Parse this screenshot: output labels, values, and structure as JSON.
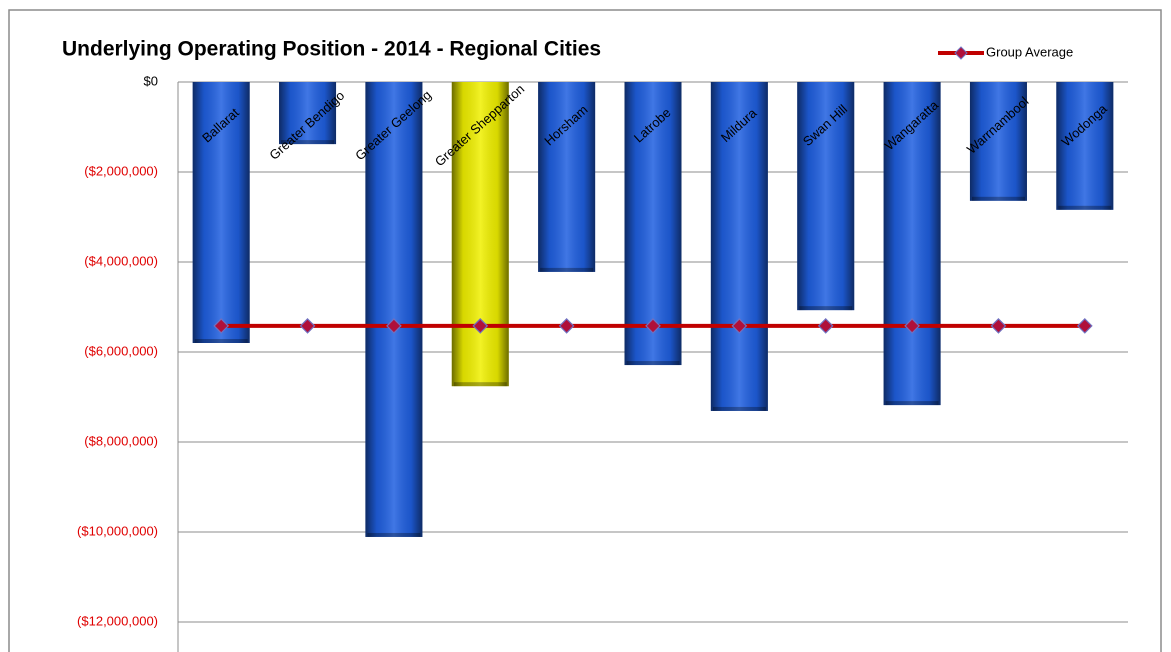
{
  "chart_data": {
    "type": "bar",
    "title": "Underlying Operating Position - 2014 - Regional Cities",
    "categories": [
      "Ballarat",
      "Greater Bendigo",
      "Greater Geelong",
      "Greater Shepparton",
      "Horsham",
      "Latrobe",
      "Mildura",
      "Swan Hill",
      "Wangaratta",
      "Warrnambool",
      "Wodonga"
    ],
    "series": [
      {
        "values": [
          -5800000,
          -1380000,
          -10110000,
          -6760000,
          -4220000,
          -6290000,
          -7310000,
          -5070000,
          -7180000,
          -2640000,
          -2840000
        ],
        "colors": [
          "#1f5fe0",
          "#1f5fe0",
          "#1f5fe0",
          "#f0f000",
          "#1f5fe0",
          "#1f5fe0",
          "#1f5fe0",
          "#1f5fe0",
          "#1f5fe0",
          "#1f5fe0",
          "#1f5fe0"
        ]
      },
      {
        "name": "Group Average",
        "type": "line",
        "color": "#c00000",
        "marker_color": "#b0103a",
        "values": [
          -5420000,
          -5420000,
          -5420000,
          -5420000,
          -5420000,
          -5420000,
          -5420000,
          -5420000,
          -5420000,
          -5420000,
          -5420000
        ]
      }
    ],
    "ylim": [
      -12000000,
      0
    ],
    "yticks": [
      {
        "value": 0,
        "label": "$0"
      },
      {
        "value": -2000000,
        "label": "($2,000,000)"
      },
      {
        "value": -4000000,
        "label": "($4,000,000)"
      },
      {
        "value": -6000000,
        "label": "($6,000,000)"
      },
      {
        "value": -8000000,
        "label": "($8,000,000)"
      },
      {
        "value": -10000000,
        "label": "($10,000,000)"
      },
      {
        "value": -12000000,
        "label": "($12,000,000)"
      }
    ],
    "grid": true,
    "legend": "top-right"
  }
}
